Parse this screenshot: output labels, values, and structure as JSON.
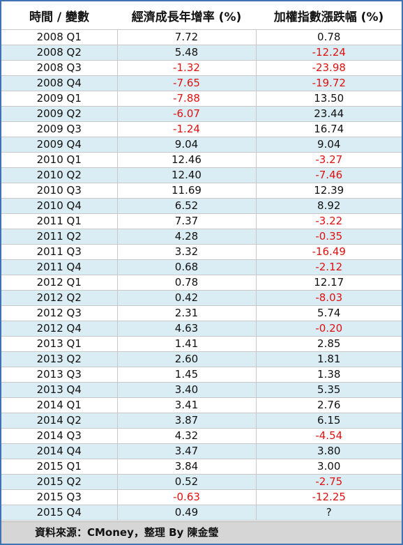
{
  "table": {
    "headers": [
      "時間 / 變數",
      "經濟成長年增率 (%)",
      "加權指數漲跌幅 (%)"
    ],
    "rows": [
      [
        "2008 Q1",
        "7.72",
        "0.78"
      ],
      [
        "2008 Q2",
        "5.48",
        "-12.24"
      ],
      [
        "2008 Q3",
        "-1.32",
        "-23.98"
      ],
      [
        "2008 Q4",
        "-7.65",
        "-19.72"
      ],
      [
        "2009 Q1",
        "-7.88",
        "13.50"
      ],
      [
        "2009 Q2",
        "-6.07",
        "23.44"
      ],
      [
        "2009 Q3",
        "-1.24",
        "16.74"
      ],
      [
        "2009 Q4",
        "9.04",
        "9.04"
      ],
      [
        "2010 Q1",
        "12.46",
        "-3.27"
      ],
      [
        "2010 Q2",
        "12.40",
        "-7.46"
      ],
      [
        "2010 Q3",
        "11.69",
        "12.39"
      ],
      [
        "2010 Q4",
        "6.52",
        "8.92"
      ],
      [
        "2011 Q1",
        "7.37",
        "-3.22"
      ],
      [
        "2011 Q2",
        "4.28",
        "-0.35"
      ],
      [
        "2011 Q3",
        "3.32",
        "-16.49"
      ],
      [
        "2011 Q4",
        "0.68",
        "-2.12"
      ],
      [
        "2012 Q1",
        "0.78",
        "12.17"
      ],
      [
        "2012 Q2",
        "0.42",
        "-8.03"
      ],
      [
        "2012 Q3",
        "2.31",
        "5.74"
      ],
      [
        "2012 Q4",
        "4.63",
        "-0.20"
      ],
      [
        "2013 Q1",
        "1.41",
        "2.85"
      ],
      [
        "2013 Q2",
        "2.60",
        "1.81"
      ],
      [
        "2013 Q3",
        "1.45",
        "1.38"
      ],
      [
        "2013 Q4",
        "3.40",
        "5.35"
      ],
      [
        "2014 Q1",
        "3.41",
        "2.76"
      ],
      [
        "2014 Q2",
        "3.87",
        "6.15"
      ],
      [
        "2014 Q3",
        "4.32",
        "-4.54"
      ],
      [
        "2014 Q4",
        "3.47",
        "3.80"
      ],
      [
        "2015 Q1",
        "3.84",
        "3.00"
      ],
      [
        "2015 Q2",
        "0.52",
        "-2.75"
      ],
      [
        "2015 Q3",
        "-0.63",
        "-12.25"
      ],
      [
        "2015 Q4",
        "0.49",
        "?"
      ]
    ],
    "negative_color": "#e01010",
    "stripe_color": "#dbedf4"
  },
  "footer": {
    "source": "資料來源：CMoney，整理 By 陳金瑩"
  }
}
